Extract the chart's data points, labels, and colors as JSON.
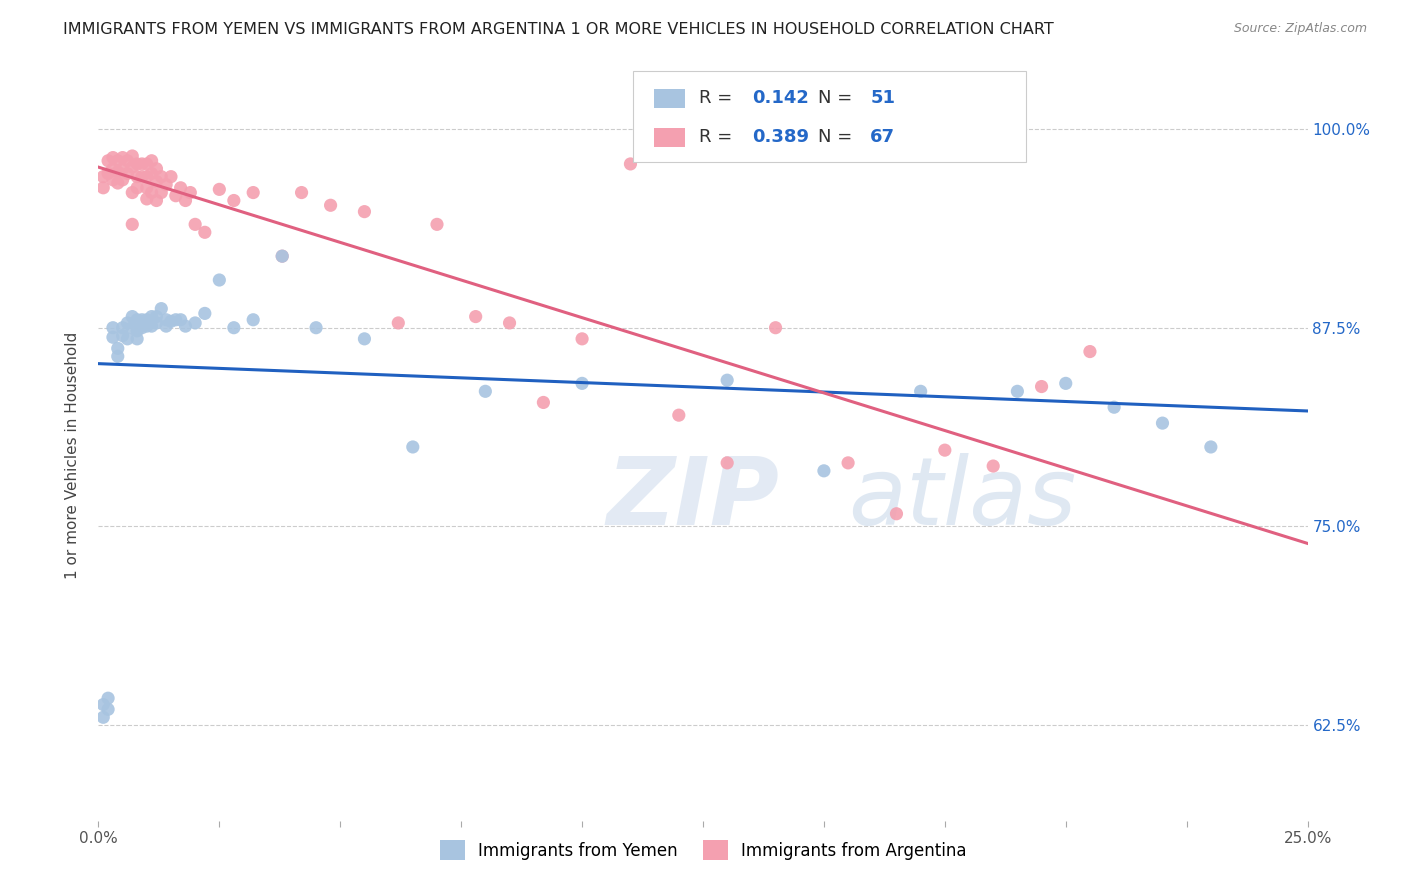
{
  "title": "IMMIGRANTS FROM YEMEN VS IMMIGRANTS FROM ARGENTINA 1 OR MORE VEHICLES IN HOUSEHOLD CORRELATION CHART",
  "source": "Source: ZipAtlas.com",
  "ylabel": "1 or more Vehicles in Household",
  "ytick_labels": [
    "62.5%",
    "75.0%",
    "87.5%",
    "100.0%"
  ],
  "ytick_values": [
    0.625,
    0.75,
    0.875,
    1.0
  ],
  "xlim": [
    0.0,
    0.25
  ],
  "ylim": [
    0.565,
    1.025
  ],
  "legend_blue_R": "0.142",
  "legend_blue_N": "51",
  "legend_pink_R": "0.389",
  "legend_pink_N": "67",
  "legend_label_blue": "Immigrants from Yemen",
  "legend_label_pink": "Immigrants from Argentina",
  "blue_color": "#a8c4e0",
  "pink_color": "#f4a0b0",
  "blue_line_color": "#2060c0",
  "pink_line_color": "#e06080",
  "text_blue_color": "#2468c8",
  "text_pink_color": "#e06080",
  "watermark_zip": "ZIP",
  "watermark_atlas": "atlas",
  "blue_scatter_x": [
    0.001,
    0.001,
    0.002,
    0.002,
    0.003,
    0.003,
    0.004,
    0.004,
    0.005,
    0.005,
    0.006,
    0.006,
    0.007,
    0.007,
    0.008,
    0.008,
    0.008,
    0.009,
    0.009,
    0.01,
    0.01,
    0.011,
    0.011,
    0.012,
    0.012,
    0.013,
    0.014,
    0.014,
    0.015,
    0.016,
    0.017,
    0.018,
    0.02,
    0.022,
    0.025,
    0.028,
    0.032,
    0.038,
    0.045,
    0.055,
    0.065,
    0.08,
    0.1,
    0.13,
    0.15,
    0.17,
    0.19,
    0.2,
    0.21,
    0.22,
    0.23
  ],
  "blue_scatter_y": [
    0.638,
    0.63,
    0.642,
    0.635,
    0.875,
    0.869,
    0.862,
    0.857,
    0.87,
    0.875,
    0.868,
    0.878,
    0.882,
    0.875,
    0.88,
    0.873,
    0.868,
    0.88,
    0.875,
    0.88,
    0.876,
    0.882,
    0.876,
    0.882,
    0.878,
    0.887,
    0.88,
    0.876,
    0.879,
    0.88,
    0.88,
    0.876,
    0.878,
    0.884,
    0.905,
    0.875,
    0.88,
    0.92,
    0.875,
    0.868,
    0.8,
    0.835,
    0.84,
    0.842,
    0.785,
    0.835,
    0.835,
    0.84,
    0.825,
    0.815,
    0.8
  ],
  "pink_scatter_x": [
    0.001,
    0.001,
    0.002,
    0.002,
    0.003,
    0.003,
    0.003,
    0.004,
    0.004,
    0.004,
    0.005,
    0.005,
    0.005,
    0.006,
    0.006,
    0.007,
    0.007,
    0.007,
    0.007,
    0.008,
    0.008,
    0.008,
    0.009,
    0.009,
    0.01,
    0.01,
    0.01,
    0.01,
    0.011,
    0.011,
    0.011,
    0.012,
    0.012,
    0.012,
    0.013,
    0.013,
    0.014,
    0.015,
    0.016,
    0.017,
    0.018,
    0.019,
    0.02,
    0.022,
    0.025,
    0.028,
    0.032,
    0.038,
    0.042,
    0.048,
    0.055,
    0.062,
    0.07,
    0.078,
    0.085,
    0.092,
    0.1,
    0.11,
    0.12,
    0.13,
    0.14,
    0.155,
    0.165,
    0.175,
    0.185,
    0.195,
    0.205
  ],
  "pink_scatter_y": [
    0.97,
    0.963,
    0.98,
    0.972,
    0.982,
    0.975,
    0.968,
    0.98,
    0.973,
    0.966,
    0.982,
    0.975,
    0.968,
    0.98,
    0.972,
    0.983,
    0.976,
    0.96,
    0.94,
    0.978,
    0.97,
    0.963,
    0.978,
    0.97,
    0.978,
    0.97,
    0.963,
    0.956,
    0.98,
    0.972,
    0.96,
    0.975,
    0.967,
    0.955,
    0.97,
    0.96,
    0.965,
    0.97,
    0.958,
    0.963,
    0.955,
    0.96,
    0.94,
    0.935,
    0.962,
    0.955,
    0.96,
    0.92,
    0.96,
    0.952,
    0.948,
    0.878,
    0.94,
    0.882,
    0.878,
    0.828,
    0.868,
    0.978,
    0.82,
    0.79,
    0.875,
    0.79,
    0.758,
    0.798,
    0.788,
    0.838,
    0.86
  ]
}
